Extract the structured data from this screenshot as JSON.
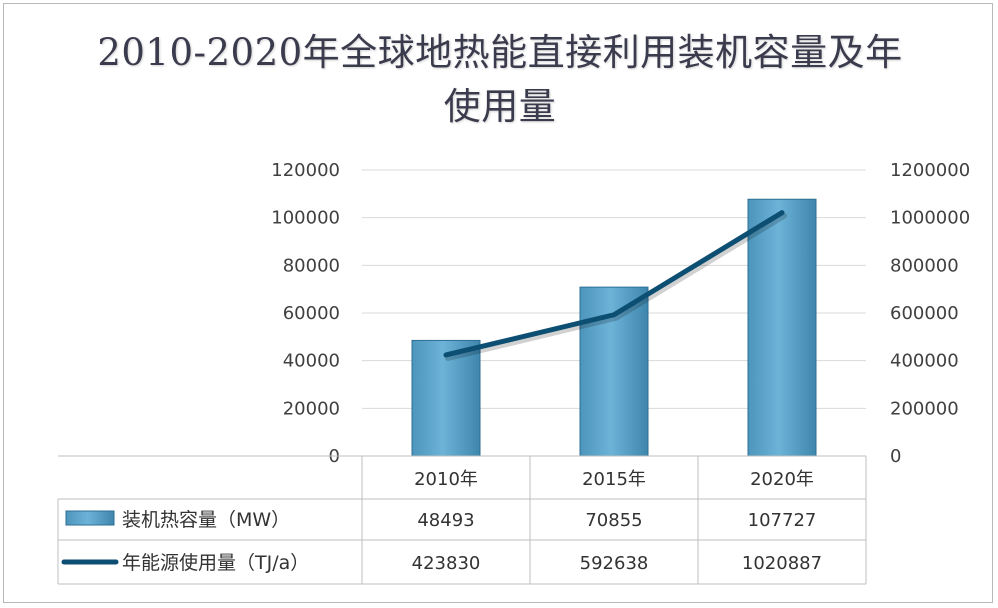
{
  "chart_data": {
    "type": "bar",
    "title": "2010-2020年全球地热能直接利用装机容量及年使用量",
    "categories": [
      "2010年",
      "2015年",
      "2020年"
    ],
    "series": [
      {
        "name": "装机热容量（MW）",
        "type": "bar",
        "axis": "left",
        "color": "#5ba3c9",
        "values": [
          48493,
          70855,
          107727
        ],
        "value_labels": [
          "48493",
          "70855",
          "107727"
        ]
      },
      {
        "name": "年能源使用量（TJ/a）",
        "type": "line",
        "axis": "right",
        "color": "#0d4f73",
        "values": [
          423830,
          592638,
          1020887
        ],
        "value_labels": [
          "423830",
          "592638",
          "1020887"
        ]
      }
    ],
    "y_left": {
      "min": 0,
      "max": 120000,
      "ticks": [
        "0",
        "20000",
        "40000",
        "60000",
        "80000",
        "100000",
        "120000"
      ]
    },
    "y_right": {
      "min": 0,
      "max": 1200000,
      "ticks": [
        "0",
        "200000",
        "400000",
        "600000",
        "800000",
        "1000000",
        "1200000"
      ]
    },
    "grid": true,
    "legend": "data-table-left"
  }
}
